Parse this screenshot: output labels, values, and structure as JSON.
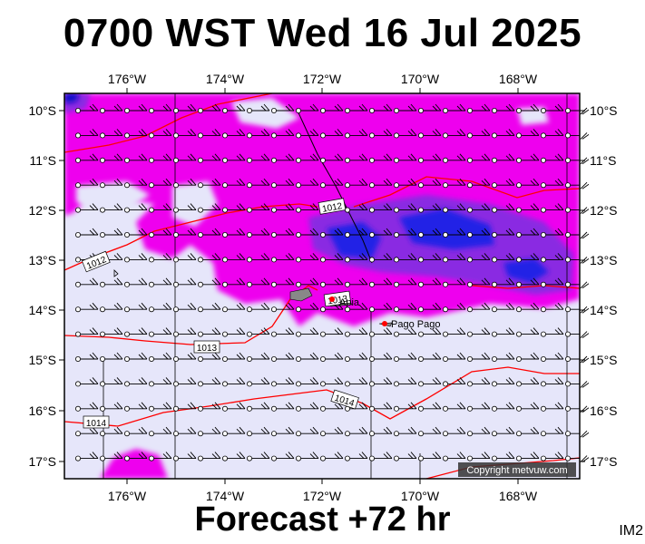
{
  "title": "0700 WST Wed 16 Jul 2025",
  "forecast_label": "Forecast +72 hr",
  "image_tag": "IM2",
  "copyright": "Copyright metvuw.com",
  "colors": {
    "background": "#e6e6fa",
    "precip_light": "#ee00ee",
    "precip_mid": "#8a2be2",
    "precip_heavy": "#2323e6",
    "isobar": "#ff0000",
    "front": "#000000"
  },
  "axes": {
    "longitude_ticks": [
      "176°W",
      "174°W",
      "172°W",
      "170°W",
      "168°W"
    ],
    "latitude_ticks_left": [
      "10°S",
      "11°S",
      "12°S",
      "13°S",
      "14°S",
      "15°S",
      "16°S",
      "17°S"
    ],
    "latitude_ticks_right": [
      "10°S",
      "11°S",
      "12°S",
      "13°S",
      "14°S",
      "15°S",
      "16°S",
      "17°S"
    ]
  },
  "isobar_labels": [
    "1012",
    "1012",
    "1013",
    "1013",
    "1014",
    "1014"
  ],
  "places": [
    {
      "name": "Apia"
    },
    {
      "name": "Pago Pago"
    }
  ]
}
